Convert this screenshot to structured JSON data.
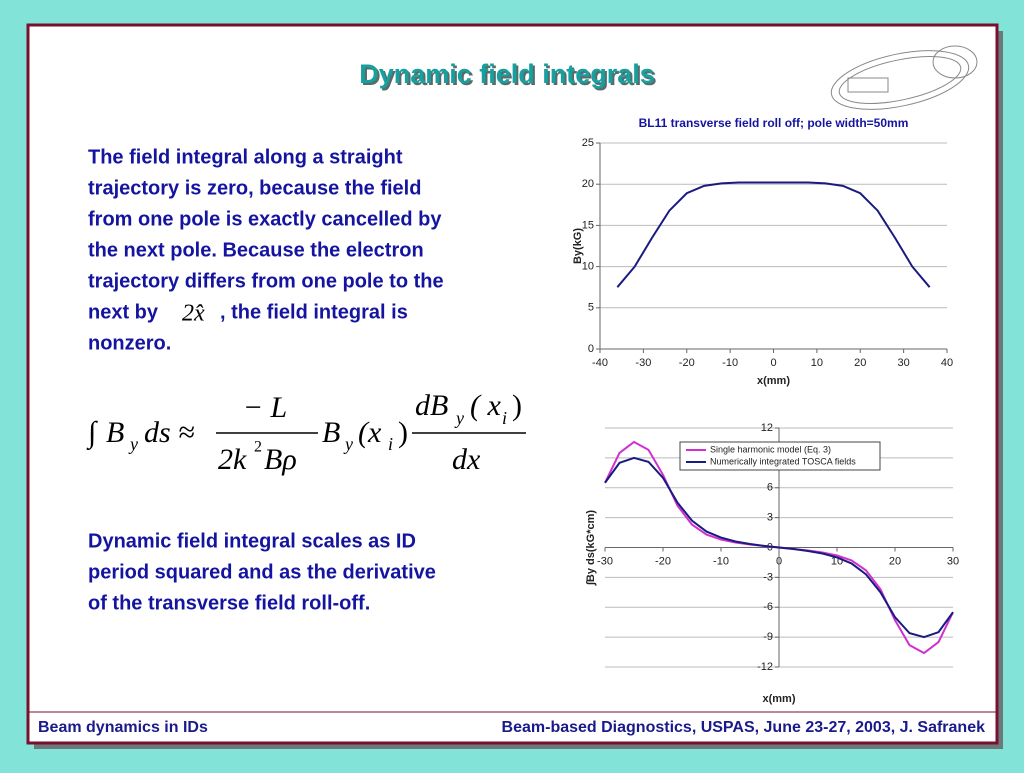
{
  "slide": {
    "title": "Dynamic field integrals",
    "paragraph1": [
      "The field integral along a straight",
      "trajectory is zero, because the field",
      "from one pole is exactly cancelled by",
      "the next pole.  Because the electron",
      "trajectory differs from one pole to the"
    ],
    "inline": {
      "before": "next by",
      "math": "2x̂",
      "after": ", the field integral is"
    },
    "paragraph1_end": "nonzero.",
    "formula": {
      "integral": "∫",
      "b1": "B",
      "y1": "y",
      "ds": "ds ≈",
      "num1": "− L",
      "den1a": "2k",
      "den1sup": "2",
      "den1b": "Bρ",
      "b2": "B",
      "y2": "y",
      "x1": "(x",
      "i1": "i",
      "close1": ")",
      "num2a": "dB",
      "y3": "y",
      "num2b": "( x",
      "i2": "i",
      "num2c": ")",
      "den2": "dx"
    },
    "paragraph2": [
      "Dynamic field integral scales as ID",
      "period squared and as the derivative",
      "of the transverse field roll-off."
    ],
    "footer_left": "Beam dynamics in IDs",
    "footer_right": "Beam-based Diagnostics, USPAS, June 23-27, 2003, J. Safranek"
  },
  "chart_data": [
    {
      "type": "line",
      "title": "BL11 transverse field roll off; pole width=50mm",
      "x_label": "x(mm)",
      "y_label": "By(kG)",
      "x": [
        -36,
        -32,
        -28,
        -24,
        -20,
        -16,
        -12,
        -8,
        -4,
        0,
        4,
        8,
        12,
        16,
        20,
        24,
        28,
        32,
        36
      ],
      "series": [
        {
          "name": null,
          "color": "#1a1a80",
          "values": [
            7.5,
            10,
            13.5,
            16.8,
            18.9,
            19.8,
            20.1,
            20.2,
            20.2,
            20.2,
            20.2,
            20.2,
            20.1,
            19.8,
            18.9,
            16.8,
            13.5,
            10,
            7.5
          ]
        }
      ],
      "xlim": [
        -40,
        40
      ],
      "xticks": [
        -40,
        -30,
        -20,
        -10,
        0,
        10,
        20,
        30,
        40
      ],
      "ylim": [
        0,
        25
      ],
      "yticks": [
        0,
        5,
        10,
        15,
        20,
        25
      ],
      "grid": true
    },
    {
      "type": "line",
      "title": null,
      "x_label": "x(mm)",
      "y_label": "∫By ds(kG*cm)",
      "x": [
        -30,
        -27.5,
        -25,
        -22.5,
        -20,
        -17.5,
        -15,
        -12.5,
        -10,
        -7.5,
        -5,
        -2.5,
        0,
        2.5,
        5,
        7.5,
        10,
        12.5,
        15,
        17.5,
        20,
        22.5,
        25,
        27.5,
        30
      ],
      "series": [
        {
          "name": "Single harmonic model (Eq. 3)",
          "color": "#d030d0",
          "values": [
            6.5,
            9.5,
            10.6,
            9.8,
            7.3,
            4.2,
            2.3,
            1.3,
            0.8,
            0.5,
            0.3,
            0.15,
            0,
            -0.15,
            -0.3,
            -0.5,
            -0.8,
            -1.3,
            -2.3,
            -4.2,
            -7.3,
            -9.8,
            -10.6,
            -9.5,
            -6.5
          ]
        },
        {
          "name": "Numerically integrated TOSCA fields",
          "color": "#1a1a80",
          "values": [
            6.5,
            8.5,
            9,
            8.6,
            7,
            4.5,
            2.7,
            1.6,
            1,
            0.6,
            0.35,
            0.15,
            0,
            -0.15,
            -0.35,
            -0.6,
            -1,
            -1.6,
            -2.7,
            -4.5,
            -7,
            -8.6,
            -9,
            -8.5,
            -6.5
          ]
        }
      ],
      "xlim": [
        -30,
        30
      ],
      "xticks": [
        -30,
        -20,
        -10,
        0,
        10,
        20,
        30
      ],
      "ylim": [
        -12,
        12
      ],
      "yticks": [
        -12,
        -9,
        -6,
        -3,
        0,
        3,
        6,
        9,
        12
      ],
      "grid": true,
      "legend": "top"
    }
  ]
}
